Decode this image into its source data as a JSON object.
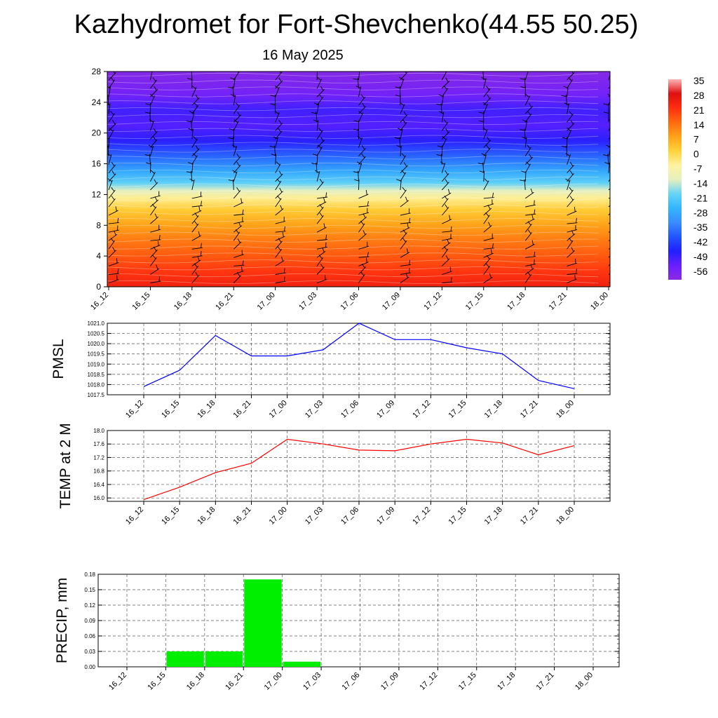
{
  "title": "Kazhydromet for Fort-Shevchenko(44.55 50.25)",
  "subtitle": "16 May 2025",
  "colors": {
    "pmsl_line": "#0000ff",
    "temp_line": "#ff0000",
    "precip_bar": "#00ee00",
    "barb": "#000000"
  },
  "chart_data": [
    {
      "type": "heatmap",
      "name": "cross-section",
      "x_ticks": [
        "16_12",
        "16_15",
        "16_18",
        "16_21",
        "17_00",
        "17_03",
        "17_06",
        "17_09",
        "17_12",
        "17_15",
        "17_18",
        "17_21",
        "18_00"
      ],
      "y_ticks": [
        0,
        4,
        8,
        12,
        16,
        20,
        24,
        28
      ],
      "ylim": [
        0,
        28
      ],
      "colorbar_labels": [
        "35",
        "28",
        "21",
        "14",
        "7",
        "0",
        "-7",
        "-14",
        "-21",
        "-28",
        "-35",
        "-42",
        "-49",
        "-56"
      ],
      "colorbar_range": [
        -63,
        35
      ],
      "profile": [
        {
          "y": 0,
          "value": 24
        },
        {
          "y": 2,
          "value": 20
        },
        {
          "y": 4,
          "value": 16
        },
        {
          "y": 6,
          "value": 12
        },
        {
          "y": 8,
          "value": 7
        },
        {
          "y": 10,
          "value": 1
        },
        {
          "y": 11.5,
          "value": -6
        },
        {
          "y": 12.5,
          "value": -14
        },
        {
          "y": 13.5,
          "value": -22
        },
        {
          "y": 15,
          "value": -30
        },
        {
          "y": 17,
          "value": -40
        },
        {
          "y": 19,
          "value": -50
        },
        {
          "y": 21,
          "value": -54
        },
        {
          "y": 23,
          "value": -52
        },
        {
          "y": 25,
          "value": -58
        },
        {
          "y": 28,
          "value": -62
        }
      ],
      "wind_barbs": "yes",
      "grid": false
    },
    {
      "type": "line",
      "name": "pmsl",
      "ylabel": "PMSL",
      "categories": [
        "16_12",
        "16_15",
        "16_18",
        "16_21",
        "17_00",
        "17_03",
        "17_06",
        "17_09",
        "17_12",
        "17_15",
        "17_18",
        "17_21",
        "18_00"
      ],
      "values": [
        1017.9,
        1018.7,
        1020.4,
        1019.4,
        1019.4,
        1019.7,
        1021.0,
        1020.2,
        1020.2,
        1019.8,
        1019.5,
        1018.2,
        1017.8
      ],
      "y_ticks": [
        "1017.5",
        "1018.0",
        "1018.5",
        "1019.0",
        "1019.5",
        "1020.0",
        "1020.5",
        "1021.0"
      ],
      "ylim": [
        1017.5,
        1021.0
      ],
      "grid": true
    },
    {
      "type": "line",
      "name": "temperature",
      "ylabel": "TEMP at 2 M",
      "categories": [
        "16_12",
        "16_15",
        "16_18",
        "16_21",
        "17_00",
        "17_03",
        "17_06",
        "17_09",
        "17_12",
        "17_15",
        "17_18",
        "17_21",
        "18_00"
      ],
      "values": [
        15.95,
        16.32,
        16.75,
        17.03,
        17.74,
        17.6,
        17.42,
        17.4,
        17.6,
        17.74,
        17.63,
        17.28,
        17.55
      ],
      "y_ticks": [
        "16.0",
        "16.4",
        "16.8",
        "17.2",
        "17.6",
        "18.0"
      ],
      "ylim": [
        15.9,
        18.0
      ],
      "grid": true
    },
    {
      "type": "bar",
      "name": "precipitation",
      "ylabel": "PRECIP, mm",
      "categories": [
        "16_12",
        "16_15",
        "16_18",
        "16_21",
        "17_00",
        "17_03",
        "17_06",
        "17_09",
        "17_12",
        "17_15",
        "17_18",
        "17_21",
        "18_00"
      ],
      "values": [
        0,
        0.03,
        0.03,
        0.17,
        0.01,
        0,
        0,
        0,
        0,
        0,
        0,
        0,
        0
      ],
      "y_ticks": [
        "0.00",
        "0.03",
        "0.06",
        "0.09",
        "0.12",
        "0.15",
        "0.18"
      ],
      "ylim": [
        0,
        0.18
      ],
      "grid": true
    }
  ]
}
